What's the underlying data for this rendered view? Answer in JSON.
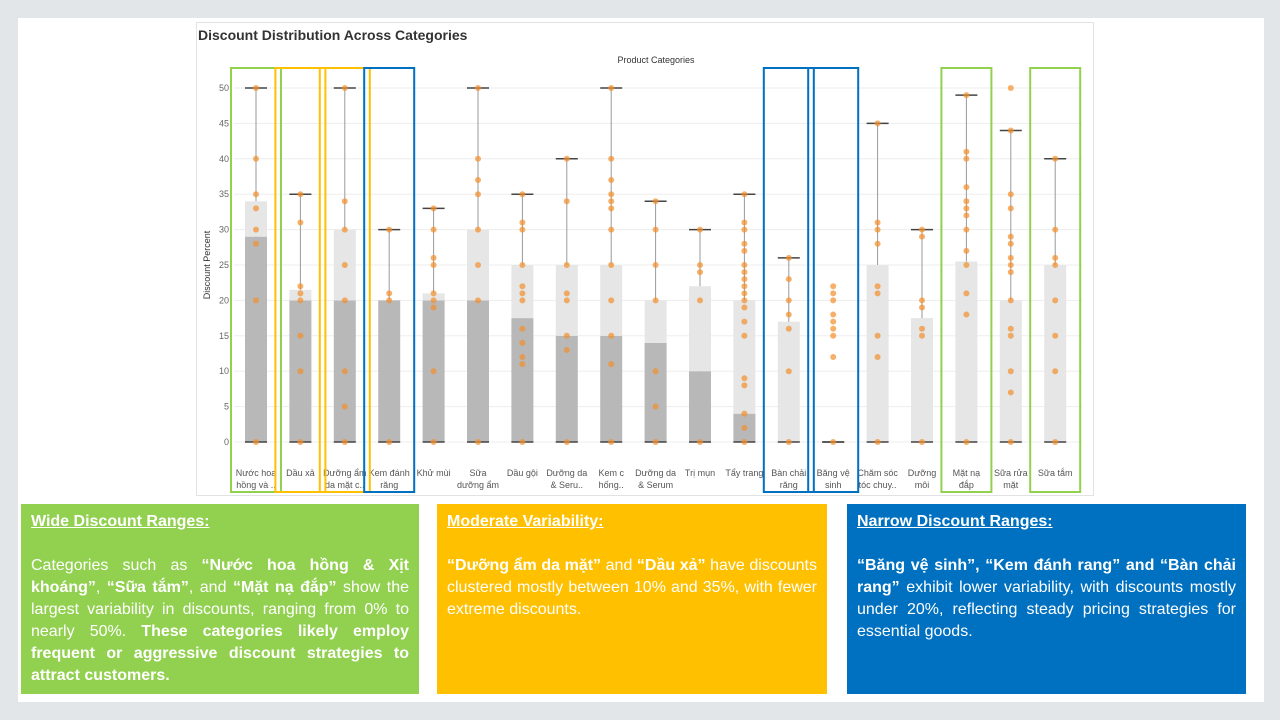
{
  "chart_data": {
    "type": "box",
    "title": "Discount Distribution Across Categories",
    "subtitle": "Product Categories",
    "ylabel": "Discount Percent",
    "ylim": [
      0,
      50
    ],
    "yticks": [
      0,
      5,
      10,
      15,
      20,
      25,
      30,
      35,
      40,
      45,
      50
    ],
    "grid": true,
    "categories": [
      {
        "label": [
          "Nước hoa",
          "hồng và .."
        ],
        "min": 0,
        "q1": 0,
        "median": 29,
        "q3": 34,
        "max": 50,
        "points": [
          0,
          20,
          28,
          30,
          33,
          35,
          40,
          50
        ],
        "highlight": "#92d050"
      },
      {
        "label": [
          "Dầu xả"
        ],
        "min": 0,
        "q1": 0,
        "median": 20,
        "q3": 21.5,
        "max": 35,
        "points": [
          0,
          10,
          15,
          20,
          21,
          22,
          31,
          35
        ],
        "highlight": "#ffc000"
      },
      {
        "label": [
          "Dưỡng ẩm",
          "da mặt c.."
        ],
        "min": 0,
        "q1": 0,
        "median": 20,
        "q3": 30,
        "max": 50,
        "points": [
          0,
          5,
          10,
          20,
          25,
          30,
          34,
          50
        ],
        "highlight": "#ffc000"
      },
      {
        "label": [
          "Kem đánh",
          "răng"
        ],
        "min": 0,
        "q1": 0,
        "median": 20,
        "q3": 20,
        "max": 30,
        "points": [
          0,
          20,
          21,
          30
        ],
        "highlight": "#0070c0"
      },
      {
        "label": [
          "Khử mùi"
        ],
        "min": 0,
        "q1": 0,
        "median": 20,
        "q3": 21,
        "max": 33,
        "points": [
          0,
          10,
          19,
          20,
          21,
          25,
          26,
          30,
          33
        ],
        "highlight": ""
      },
      {
        "label": [
          "Sữa",
          "dưỡng ẩm"
        ],
        "min": 0,
        "q1": 0,
        "median": 20,
        "q3": 30,
        "max": 50,
        "points": [
          0,
          20,
          25,
          30,
          35,
          37,
          40,
          50
        ],
        "highlight": ""
      },
      {
        "label": [
          "Dầu gội"
        ],
        "min": 0,
        "q1": 0,
        "median": 17.5,
        "q3": 25,
        "max": 35,
        "points": [
          0,
          11,
          12,
          14,
          16,
          20,
          21,
          22,
          25,
          30,
          31,
          35
        ],
        "highlight": ""
      },
      {
        "label": [
          "Dưỡng da",
          "& Seru.."
        ],
        "min": 0,
        "q1": 0,
        "median": 15,
        "q3": 25,
        "max": 40,
        "points": [
          0,
          13,
          15,
          20,
          21,
          25,
          34,
          40
        ],
        "highlight": ""
      },
      {
        "label": [
          "Kem c",
          "hống.."
        ],
        "min": 0,
        "q1": 0,
        "median": 15,
        "q3": 25,
        "max": 50,
        "points": [
          0,
          11,
          15,
          20,
          25,
          30,
          33,
          34,
          35,
          37,
          40,
          50
        ],
        "highlight": ""
      },
      {
        "label": [
          "Dưỡng da",
          "& Serum"
        ],
        "min": 0,
        "q1": 0,
        "median": 14,
        "q3": 20,
        "max": 34,
        "points": [
          0,
          5,
          10,
          20,
          25,
          30,
          34
        ],
        "highlight": ""
      },
      {
        "label": [
          "Trị mụn"
        ],
        "min": 0,
        "q1": 0,
        "median": 10,
        "q3": 22,
        "max": 30,
        "points": [
          0,
          20,
          24,
          25,
          30
        ],
        "highlight": ""
      },
      {
        "label": [
          "Tẩy trang"
        ],
        "min": 0,
        "q1": 0,
        "median": 4,
        "q3": 20,
        "max": 35,
        "points": [
          0,
          2,
          4,
          8,
          9,
          15,
          17,
          19,
          20,
          21,
          22,
          23,
          24,
          25,
          27,
          28,
          30,
          31,
          35
        ],
        "highlight": ""
      },
      {
        "label": [
          "Bàn chải",
          "răng"
        ],
        "min": 0,
        "q1": 0,
        "median": 0,
        "q3": 17,
        "max": 26,
        "points": [
          0,
          10,
          16,
          18,
          20,
          23,
          26
        ],
        "highlight": "#0070c0"
      },
      {
        "label": [
          "Băng vệ",
          "sinh"
        ],
        "min": 0,
        "q1": 0,
        "median": 0,
        "q3": 0,
        "max": 0,
        "points": [
          0,
          12,
          15,
          16,
          17,
          18,
          20,
          21,
          22
        ],
        "highlight": "#0070c0"
      },
      {
        "label": [
          "Chăm sóc",
          "tóc chuy.."
        ],
        "min": 0,
        "q1": 0,
        "median": 0,
        "q3": 25,
        "max": 45,
        "points": [
          0,
          12,
          15,
          21,
          22,
          28,
          30,
          31,
          45
        ],
        "highlight": ""
      },
      {
        "label": [
          "Dưỡng",
          "môi"
        ],
        "min": 0,
        "q1": 0,
        "median": 0,
        "q3": 17.5,
        "max": 30,
        "points": [
          0,
          15,
          16,
          19,
          20,
          29,
          30
        ],
        "highlight": ""
      },
      {
        "label": [
          "Mặt nạ",
          "đắp"
        ],
        "min": 0,
        "q1": 0,
        "median": 0,
        "q3": 25.5,
        "max": 49,
        "points": [
          0,
          18,
          21,
          25,
          27,
          30,
          32,
          33,
          34,
          36,
          40,
          41,
          49
        ],
        "highlight": "#92d050"
      },
      {
        "label": [
          "Sữa rửa",
          "mặt"
        ],
        "min": 0,
        "q1": 0,
        "median": 0,
        "q3": 20,
        "max": 44,
        "points": [
          0,
          7,
          10,
          15,
          16,
          20,
          24,
          25,
          26,
          28,
          29,
          33,
          35,
          44,
          50
        ],
        "highlight": ""
      },
      {
        "label": [
          "Sữa tắm"
        ],
        "min": 0,
        "q1": 0,
        "median": 0,
        "q3": 25,
        "max": 40,
        "points": [
          0,
          10,
          15,
          20,
          25,
          26,
          30,
          40
        ],
        "highlight": "#92d050"
      }
    ]
  },
  "colors": {
    "point": "#f28e2b",
    "box_dark": "#b8b8b8",
    "box_light": "#e6e6e6",
    "whisker": "#9a9a9a",
    "cap": "#444444",
    "grid": "#ededed"
  },
  "panels": {
    "wide": {
      "heading": "Wide Discount Ranges:",
      "body": [
        {
          "text": "Categories such as ",
          "bold": false
        },
        {
          "text": "“Nước hoa hồng & Xịt khoáng”",
          "bold": true
        },
        {
          "text": ", ",
          "bold": false
        },
        {
          "text": "“Sữa tắm”",
          "bold": true
        },
        {
          "text": ", and ",
          "bold": false
        },
        {
          "text": "“Mặt nạ đắp”",
          "bold": true
        },
        {
          "text": " show the largest variability in discounts, ranging from 0% to nearly 50%. ",
          "bold": false
        },
        {
          "text": "These categories likely employ frequent or aggressive discount strategies to attract customers.",
          "bold": true
        }
      ]
    },
    "moderate": {
      "heading": "Moderate Variability:",
      "body": [
        {
          "text": "“Dưỡng ẩm da mặt”",
          "bold": true
        },
        {
          "text": " and ",
          "bold": false
        },
        {
          "text": "“Dầu xả”",
          "bold": true
        },
        {
          "text": " have discounts clustered mostly between 10% and 35%, with fewer extreme discounts.",
          "bold": false
        }
      ]
    },
    "narrow": {
      "heading": "Narrow Discount Ranges:",
      "body": [
        {
          "text": "“Băng vệ sinh”, “Kem đánh rang” and “Bàn chải rang”",
          "bold": true
        },
        {
          "text": " exhibit lower variability, with discounts mostly under 20%, reflecting steady pricing strategies for essential goods.",
          "bold": false
        }
      ]
    }
  }
}
